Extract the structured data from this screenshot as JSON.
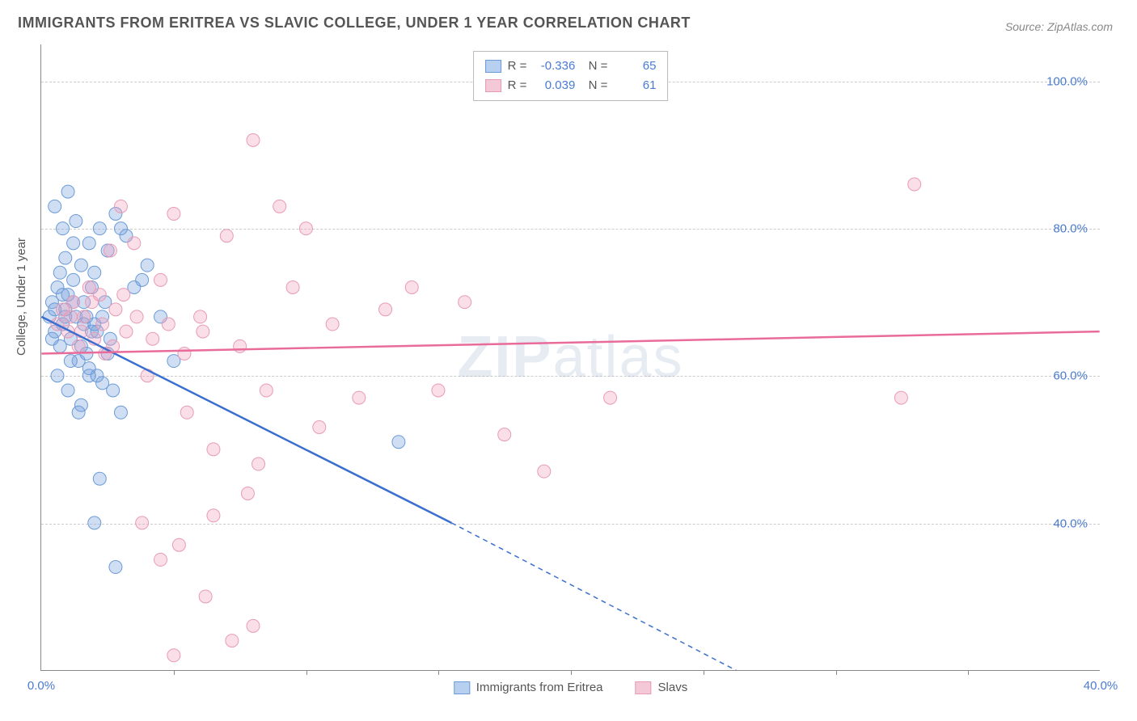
{
  "title": "IMMIGRANTS FROM ERITREA VS SLAVIC COLLEGE, UNDER 1 YEAR CORRELATION CHART",
  "source_prefix": "Source: ",
  "source_name": "ZipAtlas.com",
  "ylabel": "College, Under 1 year",
  "watermark_bold": "ZIP",
  "watermark_rest": "atlas",
  "chart": {
    "type": "scatter",
    "background_color": "#ffffff",
    "grid_color": "#cccccc",
    "axis_color": "#888888",
    "xlim": [
      0,
      40
    ],
    "ylim": [
      20,
      105
    ],
    "xticks": [
      0,
      40
    ],
    "xtick_marks": [
      5,
      10,
      15,
      20,
      25,
      30,
      35
    ],
    "yticks": [
      40,
      60,
      80,
      100
    ],
    "xtick_labels": [
      "0.0%",
      "40.0%"
    ],
    "ytick_labels": [
      "40.0%",
      "60.0%",
      "80.0%",
      "100.0%"
    ],
    "tick_color": "#4a7bd0",
    "tick_fontsize": 15,
    "series": [
      {
        "name": "Immigrants from Eritrea",
        "color_fill": "rgba(120,160,220,0.35)",
        "color_stroke": "#6a9bd8",
        "line_color": "#3a6fd0",
        "R": "-0.336",
        "N": "65",
        "trend": {
          "x1": 0,
          "y1": 68,
          "x2": 15.5,
          "y2": 40,
          "x2_ext": 30,
          "y2_ext": 13
        },
        "points": [
          [
            0.3,
            68
          ],
          [
            0.4,
            70
          ],
          [
            0.5,
            66
          ],
          [
            0.6,
            72
          ],
          [
            0.7,
            64
          ],
          [
            0.8,
            67
          ],
          [
            0.9,
            69
          ],
          [
            1.0,
            71
          ],
          [
            1.1,
            65
          ],
          [
            1.2,
            73
          ],
          [
            1.3,
            68
          ],
          [
            1.4,
            62
          ],
          [
            1.5,
            75
          ],
          [
            1.6,
            70
          ],
          [
            1.7,
            63
          ],
          [
            1.8,
            78
          ],
          [
            1.9,
            66
          ],
          [
            2.0,
            74
          ],
          [
            2.1,
            60
          ],
          [
            2.2,
            80
          ],
          [
            2.3,
            68
          ],
          [
            2.5,
            77
          ],
          [
            2.7,
            58
          ],
          [
            2.8,
            82
          ],
          [
            3.0,
            55
          ],
          [
            3.2,
            79
          ],
          [
            1.0,
            85
          ],
          [
            3.5,
            72
          ],
          [
            0.8,
            80
          ],
          [
            4.0,
            75
          ],
          [
            1.2,
            78
          ],
          [
            4.5,
            68
          ],
          [
            1.5,
            56
          ],
          [
            5.0,
            62
          ],
          [
            1.8,
            60
          ],
          [
            2.2,
            46
          ],
          [
            2.8,
            34
          ],
          [
            0.5,
            83
          ],
          [
            0.9,
            76
          ],
          [
            1.3,
            81
          ],
          [
            3.0,
            80
          ],
          [
            3.8,
            73
          ],
          [
            2.0,
            40
          ],
          [
            13.5,
            51
          ],
          [
            1.0,
            58
          ],
          [
            1.4,
            55
          ],
          [
            0.6,
            60
          ],
          [
            2.5,
            63
          ],
          [
            1.7,
            68
          ],
          [
            0.4,
            65
          ],
          [
            2.3,
            59
          ],
          [
            1.9,
            72
          ],
          [
            0.7,
            74
          ],
          [
            1.1,
            62
          ],
          [
            1.6,
            67
          ],
          [
            2.4,
            70
          ],
          [
            0.8,
            71
          ],
          [
            1.5,
            64
          ],
          [
            2.1,
            66
          ],
          [
            0.5,
            69
          ],
          [
            1.8,
            61
          ],
          [
            2.6,
            65
          ],
          [
            1.2,
            70
          ],
          [
            0.9,
            68
          ],
          [
            2.0,
            67
          ]
        ]
      },
      {
        "name": "Slavs",
        "color_fill": "rgba(240,160,190,0.35)",
        "color_stroke": "#e89bb5",
        "line_color": "#e86b9a",
        "R": "0.039",
        "N": "61",
        "trend": {
          "x1": 0,
          "y1": 63,
          "x2": 40,
          "y2": 66
        },
        "points": [
          [
            0.6,
            67
          ],
          [
            0.8,
            69
          ],
          [
            1.0,
            66
          ],
          [
            1.2,
            70
          ],
          [
            1.4,
            64
          ],
          [
            1.6,
            68
          ],
          [
            1.8,
            72
          ],
          [
            2.0,
            65
          ],
          [
            2.2,
            71
          ],
          [
            2.4,
            63
          ],
          [
            2.6,
            77
          ],
          [
            2.8,
            69
          ],
          [
            3.0,
            83
          ],
          [
            3.2,
            66
          ],
          [
            3.5,
            78
          ],
          [
            4.0,
            60
          ],
          [
            4.5,
            73
          ],
          [
            5.0,
            82
          ],
          [
            5.5,
            55
          ],
          [
            6.0,
            68
          ],
          [
            6.5,
            50
          ],
          [
            7.0,
            79
          ],
          [
            7.5,
            64
          ],
          [
            8.0,
            92
          ],
          [
            8.5,
            58
          ],
          [
            9.0,
            83
          ],
          [
            9.5,
            72
          ],
          [
            10.0,
            80
          ],
          [
            10.5,
            53
          ],
          [
            11.0,
            67
          ],
          [
            12.0,
            57
          ],
          [
            13.0,
            69
          ],
          [
            14.0,
            72
          ],
          [
            15.0,
            58
          ],
          [
            16.0,
            70
          ],
          [
            17.5,
            52
          ],
          [
            19.0,
            47
          ],
          [
            21.5,
            57
          ],
          [
            32.5,
            57
          ],
          [
            33.0,
            86
          ],
          [
            5.2,
            37
          ],
          [
            7.8,
            44
          ],
          [
            6.2,
            30
          ],
          [
            3.8,
            40
          ],
          [
            8.2,
            48
          ],
          [
            1.1,
            68
          ],
          [
            1.5,
            66
          ],
          [
            1.9,
            70
          ],
          [
            2.3,
            67
          ],
          [
            2.7,
            64
          ],
          [
            3.1,
            71
          ],
          [
            3.6,
            68
          ],
          [
            4.2,
            65
          ],
          [
            4.8,
            67
          ],
          [
            5.4,
            63
          ],
          [
            6.1,
            66
          ],
          [
            7.2,
            24
          ],
          [
            5.0,
            22
          ],
          [
            8.0,
            26
          ],
          [
            6.5,
            41
          ],
          [
            4.5,
            35
          ]
        ]
      }
    ],
    "marker_radius": 8,
    "line_width": 2.5
  },
  "legend": {
    "swatch_blue_fill": "#b8d0f0",
    "swatch_blue_border": "#6a9bd8",
    "swatch_pink_fill": "#f5c8d8",
    "swatch_pink_border": "#e89bb5"
  }
}
